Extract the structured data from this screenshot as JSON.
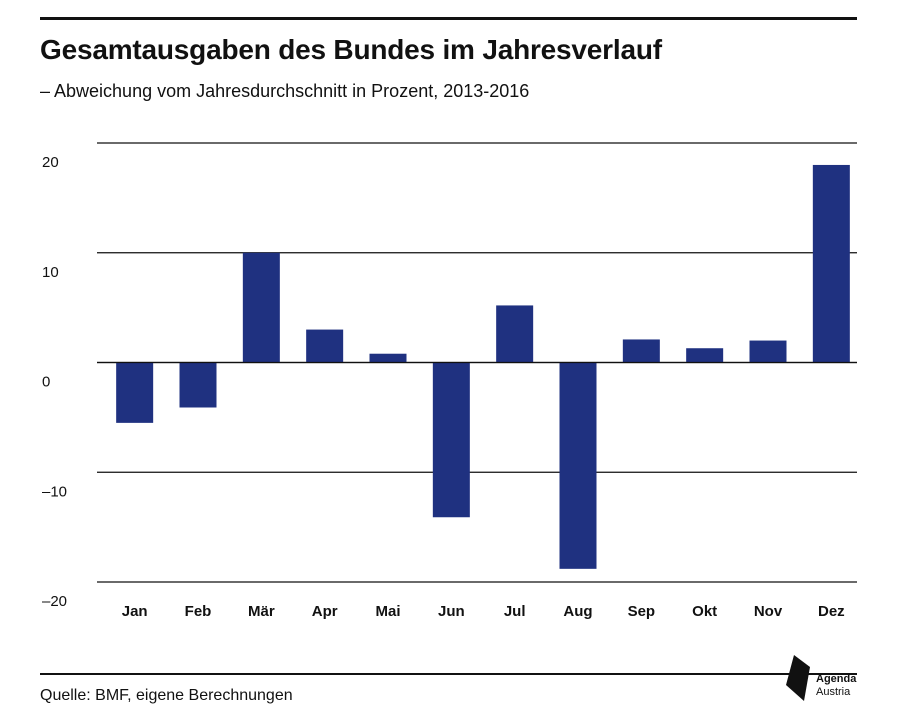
{
  "title": "Gesamtausgaben des Bundes im Jahresverlauf",
  "subtitle": "– Abweichung vom Jahresdurchschnitt in Prozent, 2013-2016",
  "source": "Quelle: BMF, eigene Berechnungen",
  "logo": {
    "line1": "Agenda",
    "line2": "Austria"
  },
  "colors": {
    "bar": "#1f3180",
    "text": "#111111",
    "grid": "#111111"
  },
  "chart_data": {
    "type": "bar",
    "categories": [
      "Jan",
      "Feb",
      "Mär",
      "Apr",
      "Mai",
      "Jun",
      "Jul",
      "Aug",
      "Sep",
      "Okt",
      "Nov",
      "Dez"
    ],
    "values": [
      -5.5,
      -4.1,
      10.0,
      3.0,
      0.8,
      -14.1,
      5.2,
      -18.8,
      2.1,
      1.3,
      2.0,
      18.0
    ],
    "yticks": [
      20,
      10,
      0,
      -10,
      -20
    ],
    "ytick_labels": [
      "20",
      "10",
      "0",
      "–10",
      "–20"
    ],
    "ylim": [
      -20,
      20
    ],
    "grid": true,
    "title": "Gesamtausgaben des Bundes im Jahresverlauf",
    "subtitle": "– Abweichung vom Jahresdurchschnitt in Prozent, 2013-2016",
    "xlabel": "",
    "ylabel": ""
  }
}
